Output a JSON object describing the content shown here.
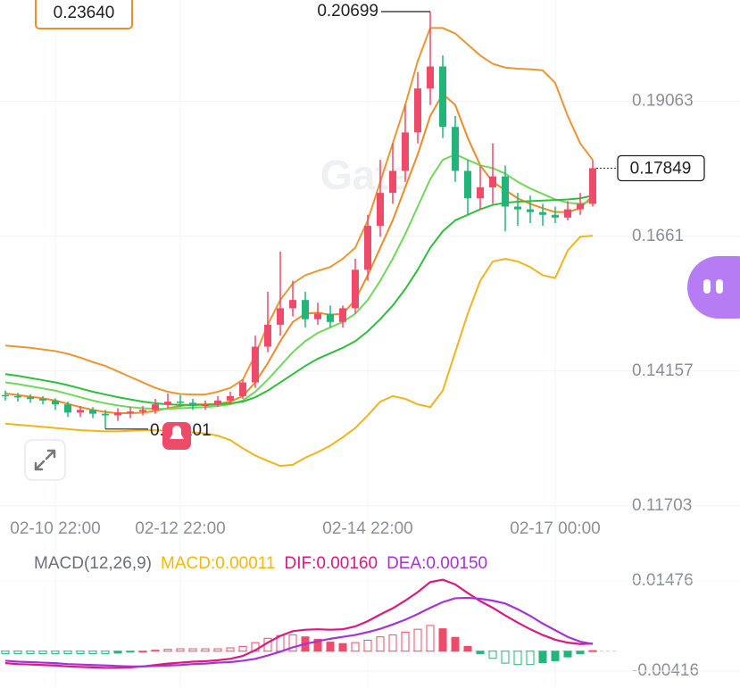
{
  "cursor_label": "0.23640",
  "watermark": "Gate",
  "chart_data": [
    {
      "type": "candlestick",
      "categories": [
        null,
        null,
        null,
        null,
        "02-10 22:00",
        null,
        null,
        null,
        null,
        null,
        null,
        null,
        null,
        null,
        "02-12 22:00",
        null,
        null,
        null,
        null,
        null,
        null,
        null,
        null,
        null,
        null,
        null,
        null,
        null,
        null,
        "02-14 22:00",
        null,
        null,
        null,
        null,
        null,
        null,
        null,
        null,
        null,
        null,
        null,
        null,
        null,
        null,
        "02-17 00:00",
        null,
        null,
        null
      ],
      "open": [
        0.1372,
        0.137,
        0.1368,
        0.1365,
        0.1362,
        0.1355,
        0.134,
        0.1345,
        0.1338,
        0.1335,
        0.134,
        0.1342,
        0.1345,
        0.1355,
        0.136,
        0.1358,
        0.1352,
        0.1355,
        0.1362,
        0.137,
        0.1395,
        0.146,
        0.15,
        0.153,
        0.1545,
        0.151,
        0.152,
        0.1505,
        0.153,
        0.16,
        0.168,
        0.174,
        0.178,
        0.185,
        0.193,
        0.197,
        0.186,
        0.178,
        0.173,
        0.175,
        0.177,
        0.1715,
        0.171,
        0.1705,
        0.17,
        0.1695,
        0.171,
        0.172
      ],
      "high": [
        0.138,
        0.1376,
        0.1373,
        0.137,
        0.1366,
        0.136,
        0.1352,
        0.135,
        0.1345,
        0.1348,
        0.135,
        0.1352,
        0.1365,
        0.1375,
        0.1372,
        0.1365,
        0.1362,
        0.137,
        0.1378,
        0.14,
        0.148,
        0.156,
        0.1633,
        0.158,
        0.156,
        0.154,
        0.1535,
        0.1535,
        0.162,
        0.17,
        0.18,
        0.183,
        0.19,
        0.196,
        0.20699,
        0.199,
        0.188,
        0.18,
        0.179,
        0.183,
        0.179,
        0.174,
        0.1735,
        0.172,
        0.1715,
        0.1725,
        0.174,
        0.18
      ],
      "low": [
        0.1362,
        0.136,
        0.1358,
        0.1355,
        0.1345,
        0.1332,
        0.1332,
        0.133,
        0.13101,
        0.1325,
        0.133,
        0.1335,
        0.1338,
        0.1348,
        0.135,
        0.1345,
        0.1345,
        0.135,
        0.1355,
        0.1365,
        0.1385,
        0.145,
        0.148,
        0.1515,
        0.1495,
        0.15,
        0.1495,
        0.1495,
        0.152,
        0.158,
        0.166,
        0.172,
        0.176,
        0.183,
        0.19,
        0.184,
        0.176,
        0.17,
        0.171,
        0.172,
        0.167,
        0.168,
        0.1685,
        0.168,
        0.1685,
        0.169,
        0.17,
        0.1715
      ],
      "close": [
        0.137,
        0.1368,
        0.1365,
        0.1362,
        0.1355,
        0.134,
        0.1345,
        0.1338,
        0.1335,
        0.134,
        0.1342,
        0.1345,
        0.1355,
        0.136,
        0.1358,
        0.1352,
        0.1355,
        0.1362,
        0.137,
        0.1395,
        0.146,
        0.15,
        0.153,
        0.1545,
        0.151,
        0.152,
        0.1505,
        0.153,
        0.16,
        0.168,
        0.174,
        0.178,
        0.185,
        0.193,
        0.197,
        0.186,
        0.178,
        0.173,
        0.175,
        0.177,
        0.1715,
        0.171,
        0.1705,
        0.17,
        0.1695,
        0.171,
        0.172,
        0.17849
      ],
      "up_color": "#ee4b6a",
      "down_color": "#22b57a",
      "ylim": [
        0.1149,
        0.2091
      ],
      "yticks": [
        0.19063,
        0.1661,
        0.14157,
        0.11703
      ],
      "grid": true,
      "overlays": [
        {
          "color": "#ec9631",
          "values": [
            0.1462,
            0.146,
            0.1458,
            0.1455,
            0.1452,
            0.1447,
            0.144,
            0.1432,
            0.1425,
            0.1415,
            0.1405,
            0.1395,
            0.1385,
            0.1378,
            0.1374,
            0.1373,
            0.1373,
            0.1378,
            0.1385,
            0.14,
            0.1445,
            0.15,
            0.1545,
            0.1575,
            0.159,
            0.1598,
            0.1605,
            0.162,
            0.164,
            0.169,
            0.176,
            0.183,
            0.19,
            0.198,
            0.204,
            0.204,
            0.203,
            0.201,
            0.199,
            0.1975,
            0.1968,
            0.1966,
            0.1965,
            0.1963,
            0.194,
            0.188,
            0.183,
            0.18
          ]
        },
        {
          "color": "#f2b41a",
          "values": [
            0.132,
            0.1318,
            0.1316,
            0.1314,
            0.1312,
            0.131,
            0.1308,
            0.1307,
            0.1306,
            0.1306,
            0.1307,
            0.1308,
            0.1308,
            0.1307,
            0.1306,
            0.1304,
            0.1302,
            0.1298,
            0.129,
            0.1275,
            0.1262,
            0.1252,
            0.1243,
            0.1245,
            0.1258,
            0.1268,
            0.128,
            0.1295,
            0.1312,
            0.1335,
            0.136,
            0.137,
            0.1365,
            0.1355,
            0.135,
            0.138,
            0.145,
            0.152,
            0.158,
            0.1615,
            0.162,
            0.1615,
            0.1605,
            0.159,
            0.1585,
            0.1635,
            0.166,
            0.1662
          ]
        },
        {
          "color": "#f08a24",
          "values": [
            0.1375,
            0.1372,
            0.1369,
            0.1366,
            0.1362,
            0.1356,
            0.135,
            0.1345,
            0.1341,
            0.1339,
            0.1339,
            0.134,
            0.1343,
            0.1348,
            0.1352,
            0.1355,
            0.1355,
            0.1356,
            0.136,
            0.137,
            0.1395,
            0.143,
            0.147,
            0.1505,
            0.152,
            0.1522,
            0.1518,
            0.152,
            0.1545,
            0.159,
            0.164,
            0.169,
            0.175,
            0.181,
            0.188,
            0.192,
            0.19,
            0.184,
            0.179,
            0.176,
            0.1745,
            0.173,
            0.172,
            0.1712,
            0.1705,
            0.1705,
            0.1712,
            0.1735
          ]
        },
        {
          "color": "#6fd85a",
          "values": [
            0.1395,
            0.1392,
            0.1388,
            0.1384,
            0.138,
            0.1374,
            0.1368,
            0.1362,
            0.1357,
            0.1353,
            0.135,
            0.1348,
            0.1347,
            0.1347,
            0.1348,
            0.1349,
            0.135,
            0.1352,
            0.1355,
            0.1362,
            0.1378,
            0.14,
            0.1425,
            0.145,
            0.147,
            0.1485,
            0.1495,
            0.1505,
            0.152,
            0.1545,
            0.158,
            0.162,
            0.1665,
            0.1715,
            0.1765,
            0.18,
            0.181,
            0.18,
            0.179,
            0.1785,
            0.1775,
            0.176,
            0.1748,
            0.1738,
            0.1728,
            0.1722,
            0.172,
            0.1725
          ]
        },
        {
          "color": "#2fbf3a",
          "values": [
            0.141,
            0.1407,
            0.1403,
            0.1399,
            0.1395,
            0.139,
            0.1384,
            0.1378,
            0.1373,
            0.1368,
            0.1364,
            0.136,
            0.1357,
            0.1355,
            0.1354,
            0.1354,
            0.1354,
            0.1355,
            0.1357,
            0.136,
            0.1368,
            0.138,
            0.1395,
            0.141,
            0.1425,
            0.1438,
            0.1448,
            0.1458,
            0.147,
            0.1488,
            0.151,
            0.1535,
            0.1565,
            0.16,
            0.164,
            0.167,
            0.169,
            0.17,
            0.171,
            0.1718,
            0.1722,
            0.1724,
            0.1725,
            0.1726,
            0.1727,
            0.1728,
            0.173,
            0.1735
          ]
        }
      ]
    },
    {
      "type": "macd",
      "title": "MACD(12,26,9)",
      "ylim": [
        -0.0066,
        0.0168
      ],
      "yticks": [
        0.01476,
        -0.00416
      ],
      "series": [
        {
          "name": "MACD:0.00011",
          "type": "bar",
          "color": "#f0b90b",
          "up_color": "#ee4b6a",
          "down_color": "#22b57a",
          "values": [
            -0.0005,
            -0.0005,
            -0.0005,
            -0.0005,
            -0.0005,
            -0.0005,
            -0.0005,
            -0.0005,
            -0.0005,
            -0.0004,
            -0.0002,
            0,
            0.0002,
            0.0004,
            0.0005,
            0.0005,
            0.0005,
            0.0005,
            0.0007,
            0.001,
            0.0018,
            0.0027,
            0.0033,
            0.0034,
            0.003,
            0.0025,
            0.0019,
            0.0016,
            0.0018,
            0.0023,
            0.003,
            0.0034,
            0.004,
            0.0046,
            0.0054,
            0.0047,
            0.0029,
            0.001,
            -0.0005,
            -0.0015,
            -0.0025,
            -0.0028,
            -0.0028,
            -0.0024,
            -0.002,
            -0.0012,
            -0.0005,
            0.00011
          ]
        },
        {
          "name": "DIF:0.00160",
          "type": "line",
          "color": "#d81b80",
          "values": [
            -0.0025,
            -0.0027,
            -0.0028,
            -0.0029,
            -0.003,
            -0.0032,
            -0.0033,
            -0.0034,
            -0.0035,
            -0.0035,
            -0.0034,
            -0.0032,
            -0.0029,
            -0.0026,
            -0.0024,
            -0.0022,
            -0.0021,
            -0.0019,
            -0.0016,
            -0.001,
            0.0002,
            0.0018,
            0.0032,
            0.0042,
            0.0045,
            0.0046,
            0.0045,
            0.0046,
            0.0052,
            0.0063,
            0.0077,
            0.009,
            0.0106,
            0.0124,
            0.0145,
            0.015,
            0.014,
            0.0122,
            0.0105,
            0.0091,
            0.0075,
            0.006,
            0.0046,
            0.0034,
            0.0024,
            0.0018,
            0.0015,
            0.0016
          ]
        },
        {
          "name": "DEA:0.00150",
          "type": "line",
          "color": "#a733d4",
          "values": [
            -0.002,
            -0.0022,
            -0.0023,
            -0.0024,
            -0.0025,
            -0.0027,
            -0.0028,
            -0.0029,
            -0.003,
            -0.0031,
            -0.0032,
            -0.0032,
            -0.0031,
            -0.003,
            -0.0029,
            -0.0027,
            -0.0026,
            -0.0024,
            -0.0023,
            -0.002,
            -0.0016,
            -0.0009,
            -0.0001,
            0.0008,
            0.0015,
            0.0021,
            0.0026,
            0.003,
            0.0034,
            0.004,
            0.0047,
            0.0056,
            0.0066,
            0.0078,
            0.0091,
            0.0103,
            0.0111,
            0.0112,
            0.011,
            0.0106,
            0.01,
            0.0088,
            0.0074,
            0.0058,
            0.0044,
            0.003,
            0.002,
            0.0015
          ]
        }
      ]
    }
  ]
}
